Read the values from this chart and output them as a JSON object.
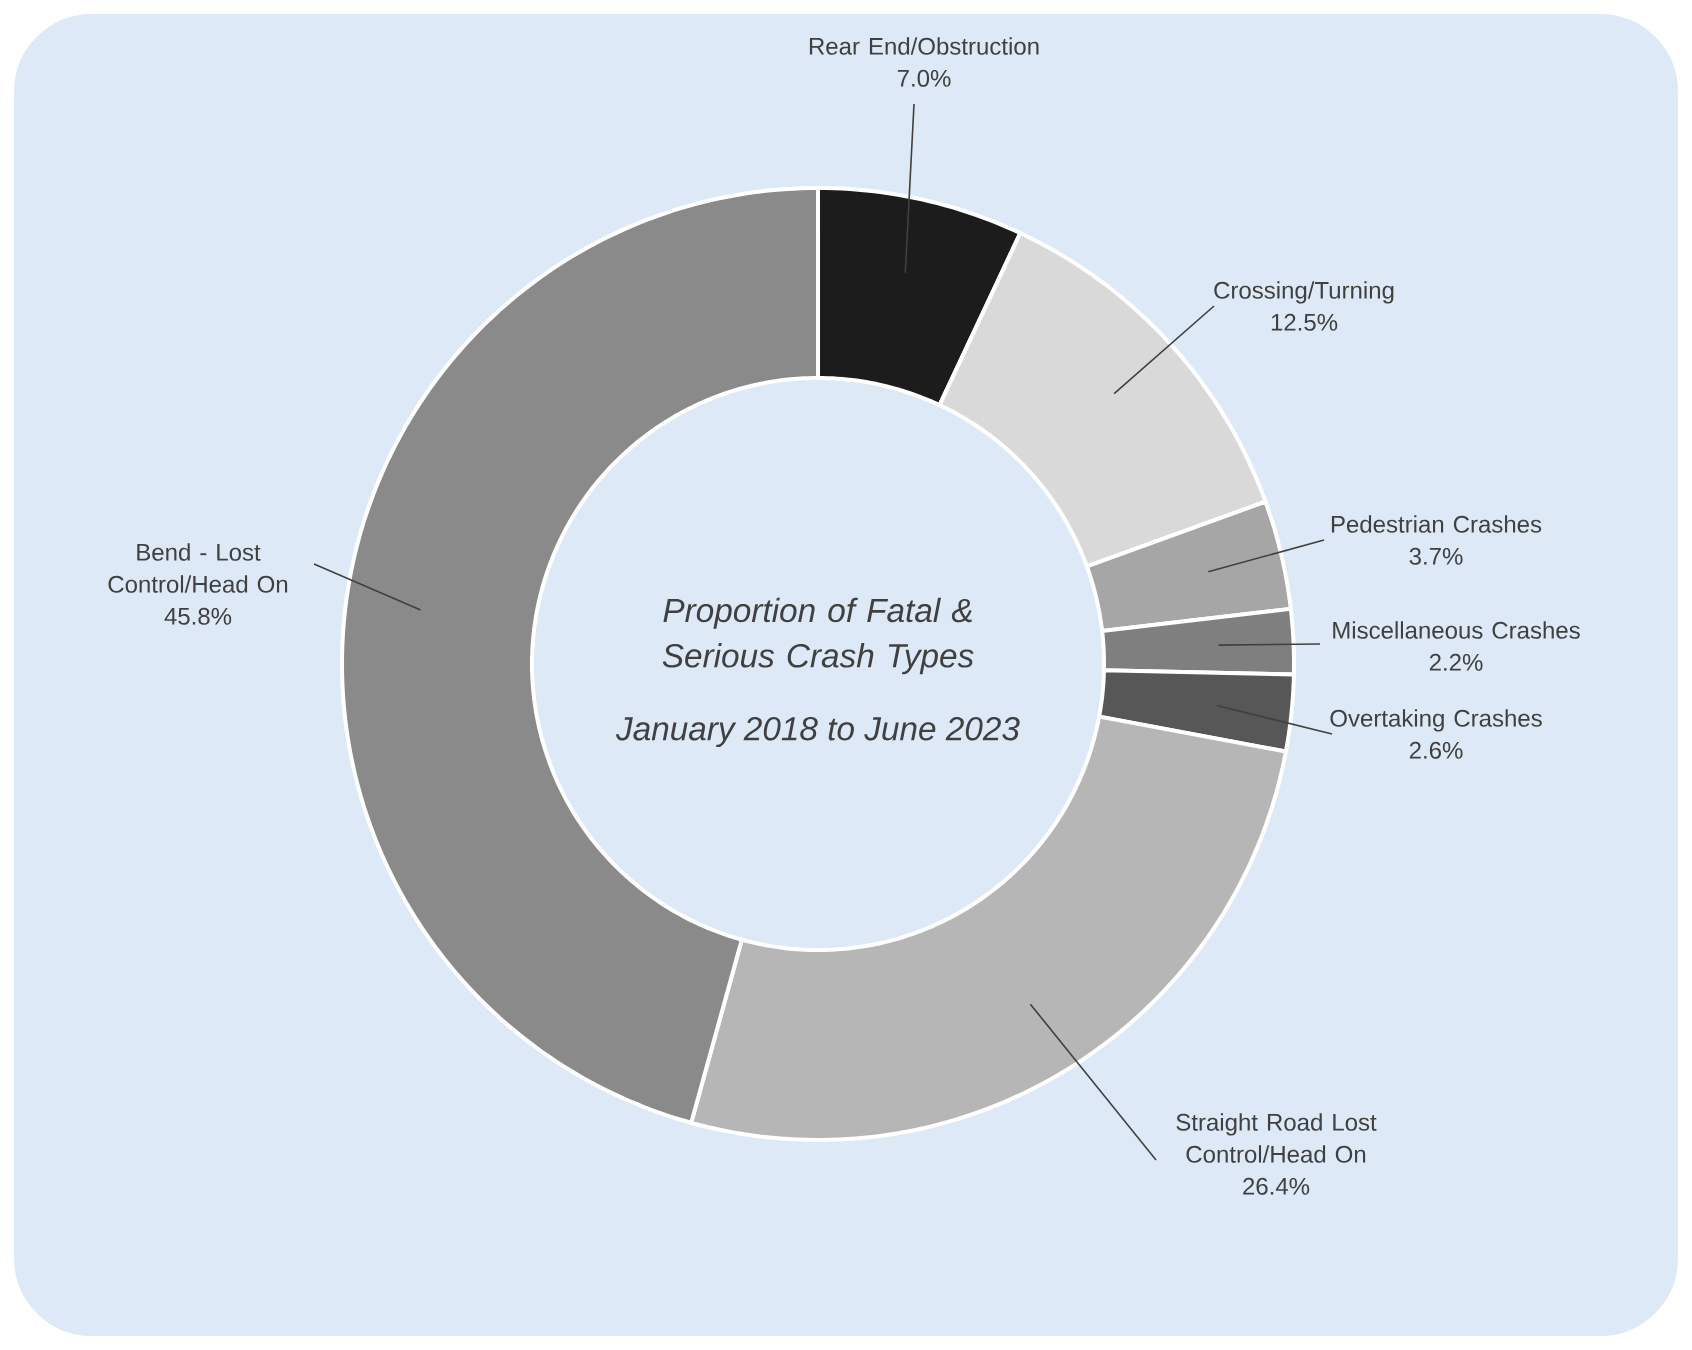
{
  "chart_data": {
    "type": "donut",
    "title": "Proportion of Fatal & Serious Crash Types",
    "subtitle": "January 2018 to June 2023",
    "categories": [
      "Rear End/Obstruction",
      "Crossing/Turning",
      "Pedestrian Crashes",
      "Miscellaneous Crashes",
      "Overtaking Crashes",
      "Straight Road Lost Control/Head On",
      "Bend - Lost Control/Head On"
    ],
    "values": [
      7.0,
      12.5,
      3.7,
      2.2,
      2.6,
      26.4,
      45.8
    ],
    "value_labels": [
      "7.0%",
      "12.5%",
      "3.7%",
      "2.2%",
      "2.6%",
      "26.4%",
      "45.8%"
    ],
    "colors": [
      "#1c1c1c",
      "#d9d9d9",
      "#a6a6a6",
      "#7f7f7f",
      "#575757",
      "#b6b6b6",
      "#8a8a8a"
    ]
  }
}
